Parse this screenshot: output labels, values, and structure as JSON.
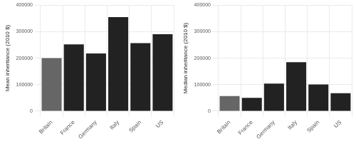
{
  "chart_data": [
    {
      "type": "bar",
      "y_label": "Mean inheritance (2010 $)",
      "categories": [
        "Britain",
        "France",
        "Germany",
        "Italy",
        "Spain",
        "US"
      ],
      "values": [
        200000,
        252000,
        218000,
        355000,
        257000,
        290000
      ],
      "colors": [
        "#666666",
        "#222222",
        "#222222",
        "#222222",
        "#222222",
        "#222222"
      ],
      "ylim": [
        0,
        400000
      ],
      "yticks": [
        0,
        100000,
        200000,
        300000,
        400000
      ],
      "grid": true
    },
    {
      "type": "bar",
      "y_label": "Median inheritance (2010 $)",
      "categories": [
        "Britain",
        "France",
        "Germany",
        "Italy",
        "Spain",
        "US"
      ],
      "values": [
        57000,
        50000,
        104000,
        185000,
        101000,
        68000
      ],
      "colors": [
        "#666666",
        "#222222",
        "#222222",
        "#222222",
        "#222222",
        "#222222"
      ],
      "ylim": [
        0,
        400000
      ],
      "yticks": [
        0,
        100000,
        200000,
        300000,
        400000
      ],
      "grid": true
    }
  ]
}
